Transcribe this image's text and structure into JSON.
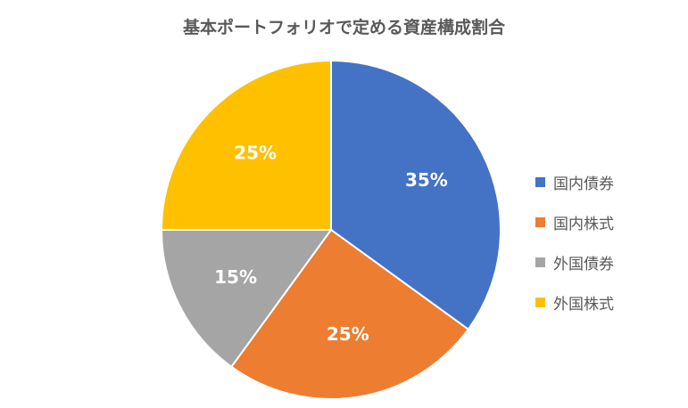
{
  "chart_data": {
    "type": "pie",
    "title": "基本ポートフォリオで定める資産構成割合",
    "categories": [
      "国内債券",
      "国内株式",
      "外国債券",
      "外国株式"
    ],
    "values": [
      35,
      25,
      15,
      25
    ],
    "labels": [
      "35%",
      "25%",
      "15%",
      "25%"
    ],
    "colors": [
      "#4472C4",
      "#ED7D31",
      "#A5A5A5",
      "#FFC000"
    ],
    "legend_position": "right"
  }
}
